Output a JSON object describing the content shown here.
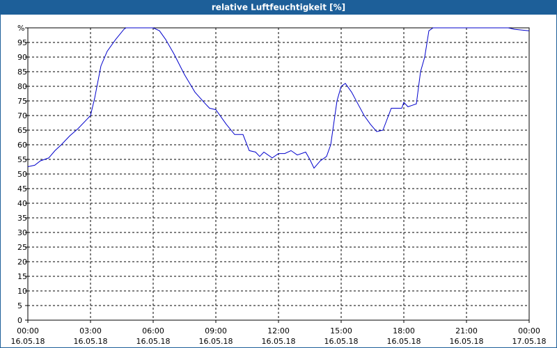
{
  "chart_data": {
    "type": "line",
    "title": "relative Luftfeuchtigkeit [%]",
    "xlim": [
      0,
      24
    ],
    "xticks": [
      {
        "value": 0,
        "label": "00:00"
      },
      {
        "value": 3,
        "label": "03:00"
      },
      {
        "value": 6,
        "label": "06:00"
      },
      {
        "value": 9,
        "label": "09:00"
      },
      {
        "value": 12,
        "label": "12:00"
      },
      {
        "value": 15,
        "label": "15:00"
      },
      {
        "value": 18,
        "label": "18:00"
      },
      {
        "value": 21,
        "label": "21:00"
      },
      {
        "value": 24,
        "label": "00:00"
      }
    ],
    "xtick_dates": [
      "16.05.18",
      "16.05.18",
      "16.05.18",
      "16.05.18",
      "16.05.18",
      "16.05.18",
      "16.05.18",
      "16.05.18",
      "17.05.18"
    ],
    "ylim": [
      0,
      100
    ],
    "yticks": [
      0,
      5,
      10,
      15,
      20,
      25,
      30,
      35,
      40,
      45,
      50,
      55,
      60,
      65,
      70,
      75,
      80,
      85,
      90,
      95,
      {
        "value": 100,
        "label": "%"
      }
    ],
    "grid": true,
    "series": [
      {
        "color": "#0000cc",
        "x": [
          0,
          0.33,
          0.6,
          1.0,
          1.3,
          1.6,
          2.0,
          2.4,
          2.8,
          3.0,
          3.2,
          3.5,
          3.8,
          4.2,
          4.6,
          4.7,
          5.8,
          6.0,
          6.3,
          6.6,
          7.0,
          7.5,
          8.0,
          8.5,
          8.7,
          9.0,
          9.5,
          9.9,
          10.3,
          10.6,
          10.9,
          11.1,
          11.3,
          11.7,
          12.0,
          12.3,
          12.6,
          12.9,
          13.3,
          13.5,
          13.7,
          14.0,
          14.3,
          14.5,
          14.8,
          15.0,
          15.2,
          15.5,
          15.8,
          16.1,
          16.4,
          16.7,
          17.0,
          17.4,
          17.9,
          18.0,
          18.2,
          18.4,
          18.6,
          18.8,
          19.0,
          19.2,
          19.4,
          23.0,
          23.3,
          24
        ],
        "values": [
          52.5,
          53,
          54.5,
          55.5,
          58,
          60,
          63,
          65.5,
          68.5,
          70,
          76,
          87,
          92,
          96,
          99.5,
          100,
          100,
          100,
          99,
          96,
          91,
          84,
          78,
          74,
          72.5,
          72,
          67,
          63.5,
          63.5,
          58,
          57.5,
          56,
          57.5,
          55.5,
          57,
          57,
          58,
          56.5,
          57.5,
          55,
          52,
          54.5,
          56,
          60,
          75,
          80,
          81,
          78,
          74,
          70,
          67,
          64.5,
          65,
          72.5,
          72.5,
          74.5,
          73,
          73.5,
          74,
          85,
          90,
          99,
          100,
          100,
          99.5,
          99
        ]
      }
    ]
  }
}
